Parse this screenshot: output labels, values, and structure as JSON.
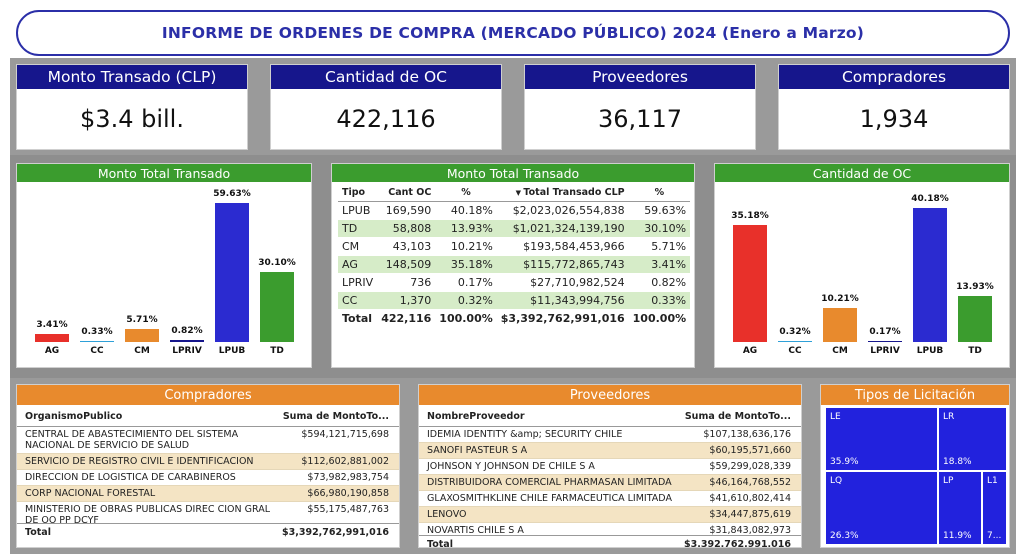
{
  "title": "INFORME DE ORDENES DE COMPRA (MERCADO PÚBLICO) 2024 (Enero a Marzo)",
  "kpis": [
    {
      "label": "Monto Transado (CLP)",
      "value": "$3.4 bill."
    },
    {
      "label": "Cantidad de OC",
      "value": "422,116"
    },
    {
      "label": "Proveedores",
      "value": "36,117"
    },
    {
      "label": "Compradores",
      "value": "1,934"
    }
  ],
  "colors": {
    "AG": "#e8302a",
    "CC": "#2ea0d8",
    "CM": "#e88a2d",
    "LPRIV": "#16168c",
    "LPUB": "#2b2bd0",
    "TD": "#3b9c2e"
  },
  "left_chart": {
    "title": "Monto Total Transado",
    "chart_data": {
      "type": "bar",
      "categories": [
        "AG",
        "CC",
        "CM",
        "LPRIV",
        "LPUB",
        "TD"
      ],
      "values": [
        3.41,
        0.33,
        5.71,
        0.82,
        59.63,
        30.1
      ],
      "labels": [
        "3.41%",
        "0.33%",
        "5.71%",
        "0.82%",
        "59.63%",
        "30.10%"
      ],
      "ylim": [
        0,
        60
      ]
    }
  },
  "table": {
    "title": "Monto Total Transado",
    "headers": [
      "Tipo",
      "Cant OC",
      "%",
      "Total Transado CLP",
      "%"
    ],
    "rows": [
      [
        "LPUB",
        "169,590",
        "40.18%",
        "$2,023,026,554,838",
        "59.63%"
      ],
      [
        "TD",
        "58,808",
        "13.93%",
        "$1,021,324,139,190",
        "30.10%"
      ],
      [
        "CM",
        "43,103",
        "10.21%",
        "$193,584,453,966",
        "5.71%"
      ],
      [
        "AG",
        "148,509",
        "35.18%",
        "$115,772,865,743",
        "3.41%"
      ],
      [
        "LPRIV",
        "736",
        "0.17%",
        "$27,710,982,524",
        "0.82%"
      ],
      [
        "CC",
        "1,370",
        "0.32%",
        "$11,343,994,756",
        "0.33%"
      ]
    ],
    "total": [
      "Total",
      "422,116",
      "100.00%",
      "$3,392,762,991,016",
      "100.00%"
    ]
  },
  "right_chart": {
    "title": "Cantidad de OC",
    "chart_data": {
      "type": "bar",
      "categories": [
        "AG",
        "CC",
        "CM",
        "LPRIV",
        "LPUB",
        "TD"
      ],
      "values": [
        35.18,
        0.32,
        10.21,
        0.17,
        40.18,
        13.93
      ],
      "labels": [
        "35.18%",
        "0.32%",
        "10.21%",
        "0.17%",
        "40.18%",
        "13.93%"
      ],
      "ylim": [
        0,
        42
      ]
    }
  },
  "compradores": {
    "title": "Compradores",
    "col1": "OrganismoPublico",
    "col2": "Suma de MontoTo...",
    "rows": [
      {
        "name": "CENTRAL DE ABASTECIMIENTO DEL SISTEMA NACIONAL DE SERVICIO DE SALUD",
        "value": "$594,121,715,698"
      },
      {
        "name": "SERVICIO DE REGISTRO CIVIL E IDENTIFICACION",
        "value": "$112,602,881,002"
      },
      {
        "name": "DIRECCION DE LOGISTICA DE CARABINEROS",
        "value": "$73,982,983,754"
      },
      {
        "name": "CORP NACIONAL FORESTAL",
        "value": "$66,980,190,858"
      },
      {
        "name": "MINISTERIO DE OBRAS PUBLICAS DIREC CION GRAL DE OO PP DCYF",
        "value": "$55,175,487,763"
      }
    ],
    "total_label": "Total",
    "total_value": "$3,392,762,991,016"
  },
  "proveedores": {
    "title": "Proveedores",
    "col1": "NombreProveedor",
    "col2": "Suma de MontoTo...",
    "rows": [
      {
        "name": "IDEMIA IDENTITY &amp; SECURITY CHILE",
        "value": "$107,138,636,176"
      },
      {
        "name": "SANOFI PASTEUR S A",
        "value": "$60,195,571,660"
      },
      {
        "name": "JOHNSON Y JOHNSON DE CHILE S A",
        "value": "$59,299,028,339"
      },
      {
        "name": "DISTRIBUIDORA COMERCIAL PHARMASAN LIMITADA",
        "value": "$46,164,768,552"
      },
      {
        "name": "GLAXOSMITHKLINE CHILE FARMACEUTICA LIMITADA",
        "value": "$41,610,802,414"
      },
      {
        "name": "LENOVO",
        "value": "$34,447,875,619"
      },
      {
        "name": "NOVARTIS CHILE S A",
        "value": "$31,843,082,973"
      }
    ],
    "total_label": "Total",
    "total_value": "$3,392,762,991,016"
  },
  "licitacion": {
    "title": "Tipos de Licitación",
    "tiles": [
      {
        "name": "LE",
        "pct": "35.9%"
      },
      {
        "name": "LR",
        "pct": "18.8%"
      },
      {
        "name": "LQ",
        "pct": "26.3%"
      },
      {
        "name": "LP",
        "pct": "11.9%"
      },
      {
        "name": "L1",
        "pct": "7..."
      }
    ]
  }
}
